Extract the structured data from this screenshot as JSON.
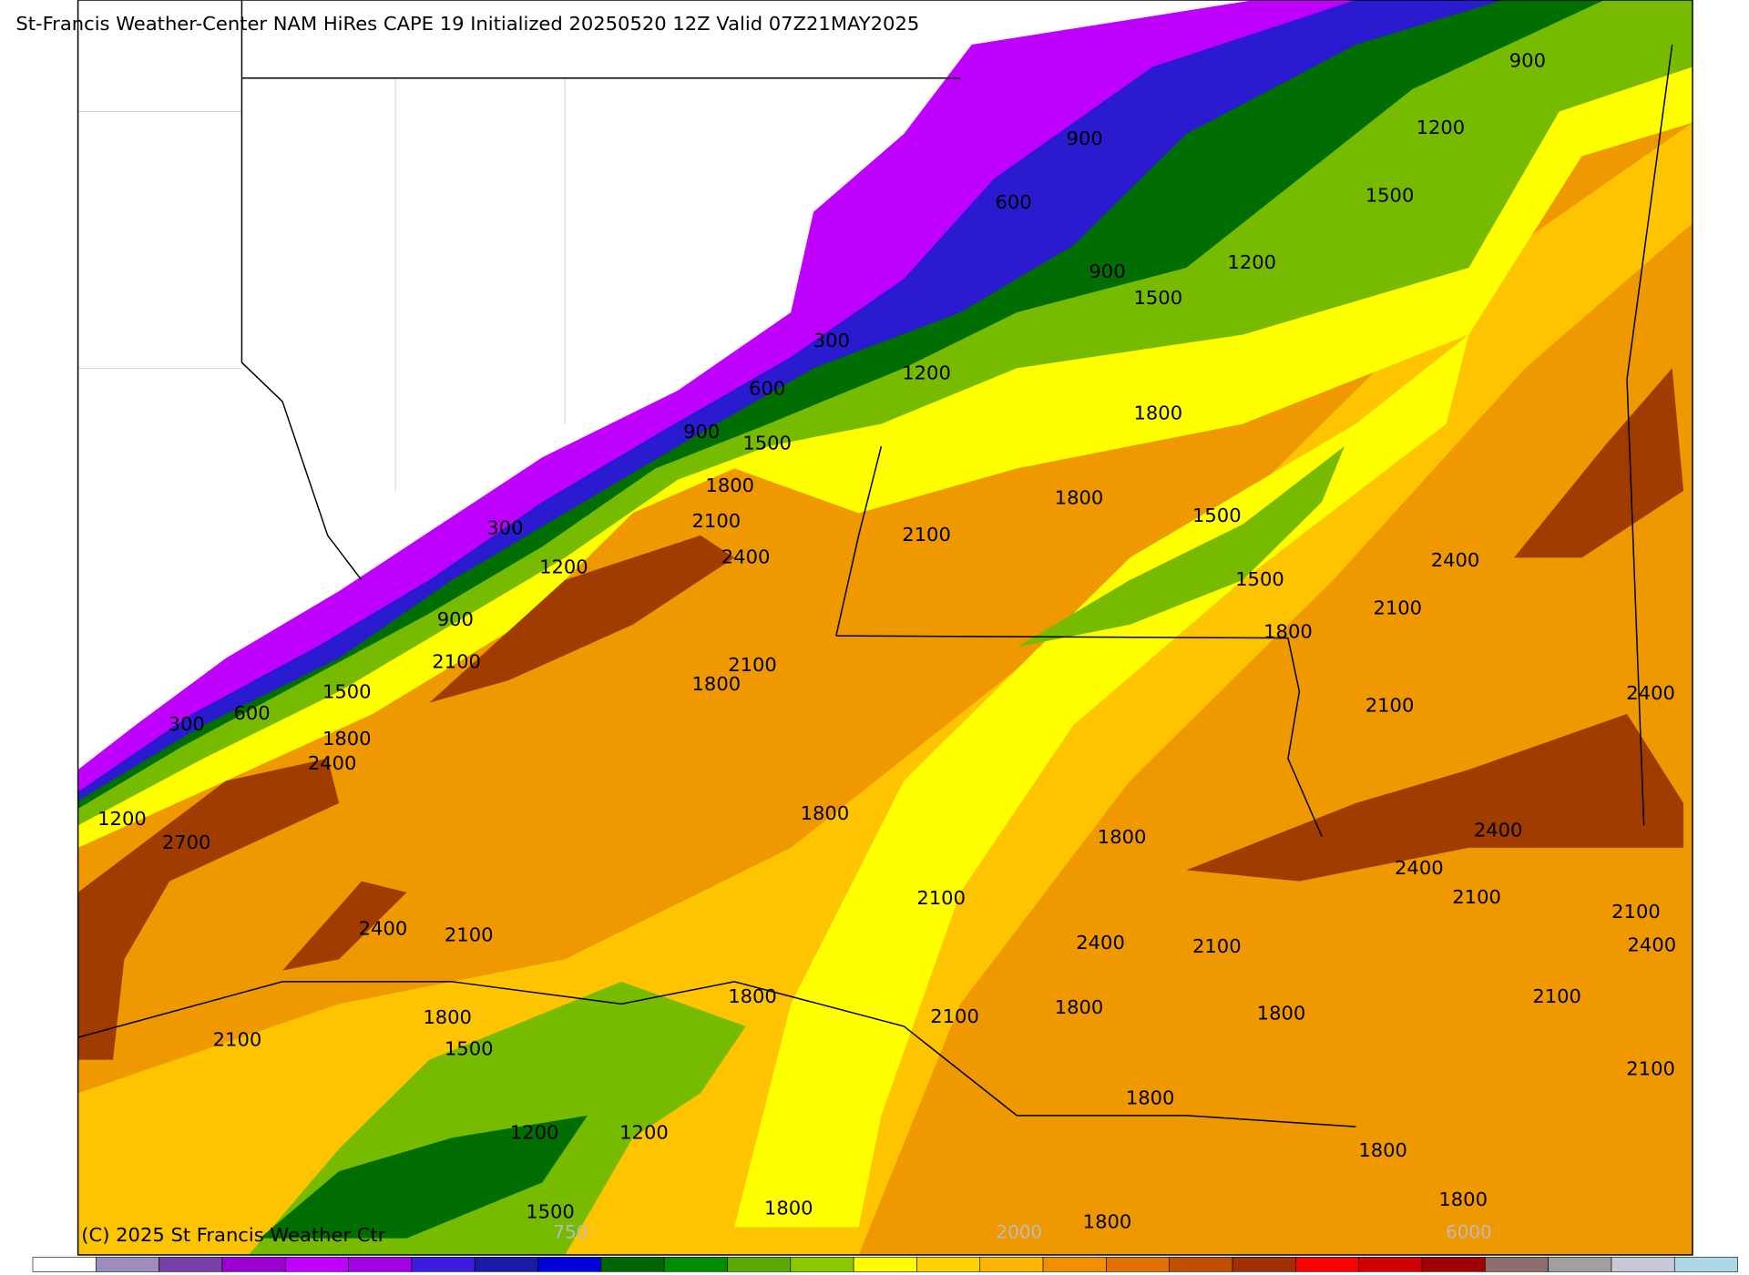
{
  "title": "St-Francis Weather-Center NAM HiRes CAPE  19 Initialized 20250520 12Z Valid 07Z21MAY2025",
  "copyright": "(C) 2025 St Francis Weather Ctr",
  "contour_labels": [
    "900",
    "1200",
    "900",
    "1500",
    "600",
    "1200",
    "900",
    "1500",
    "300",
    "1200",
    "600",
    "1800",
    "900",
    "1500",
    "1800",
    "1800",
    "2100",
    "1500",
    "300",
    "2100",
    "2400",
    "2400",
    "1200",
    "1500",
    "2100",
    "900",
    "1800",
    "2100",
    "2100",
    "1800",
    "1500",
    "2400",
    "2100",
    "600",
    "300",
    "1800",
    "2400",
    "1800",
    "1200",
    "2400",
    "1800",
    "2700",
    "2400",
    "2100",
    "2100",
    "2100",
    "2400",
    "2100",
    "2400",
    "2100",
    "2400",
    "1800",
    "2100",
    "1800",
    "1800",
    "2100",
    "1800",
    "2100",
    "1500",
    "2100",
    "1800",
    "1200",
    "1200",
    "1800",
    "1800",
    "1500",
    "1800",
    "1800"
  ],
  "colorbar": {
    "colors": [
      "#ffffff",
      "#9c8cc0",
      "#7a3fa8",
      "#9b00d0",
      "#c000ff",
      "#a200e6",
      "#3c1ce0",
      "#1a1aa8",
      "#0000d8",
      "#006400",
      "#008c00",
      "#5aa800",
      "#8cc800",
      "#ffff00",
      "#ffd200",
      "#ffb400",
      "#f09000",
      "#e07000",
      "#c05000",
      "#a03000",
      "#ff0000",
      "#d00000",
      "#a00000",
      "#8c6e6e",
      "#a0a0a0",
      "#c8c8d8",
      "#add8e6"
    ],
    "labels": [
      "750",
      "2000",
      "6000"
    ]
  }
}
